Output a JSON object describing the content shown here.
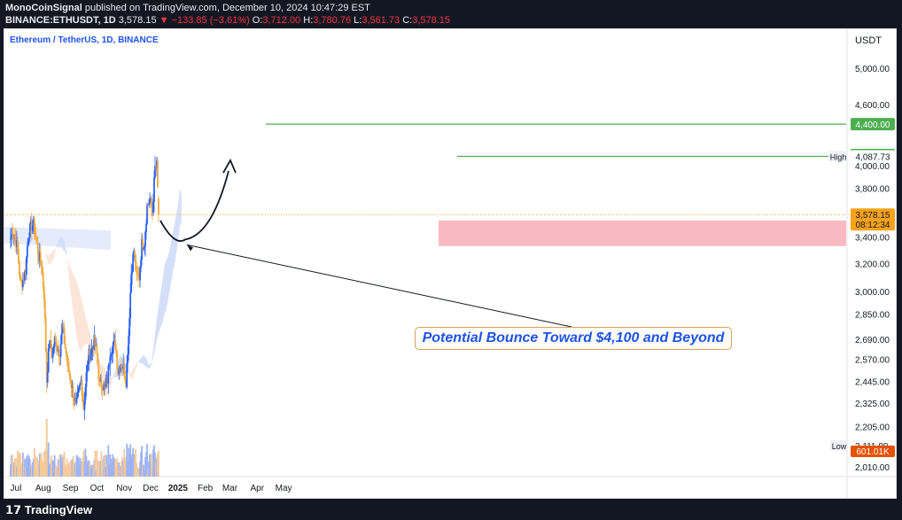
{
  "header": {
    "publisher": "MonoCoinSignal",
    "published_text": "published on TradingView.com, December 10, 2024 10:47:29 EST",
    "symbol": "BINANCE:ETHUSDT, 1D",
    "last": "3,578.15",
    "change": "−133.85 (−3.61%)",
    "open_label": "O:",
    "open": "3,712.00",
    "high_label": "H:",
    "high": "3,780.76",
    "low_label": "L:",
    "low": "3,561.73",
    "close_label": "C:",
    "close": "3,578.15"
  },
  "chart_title": "Ethereum / TetherUS, 1D, BINANCE",
  "currency": "USDT",
  "annotation": "Potential Bounce Toward $4,100 and Beyond",
  "footer_brand": "TradingView",
  "colors": {
    "up": "#2962ff",
    "down": "#f0a93a",
    "target_line": "#4caf50",
    "support_zone": "#f8a8b0",
    "cloud_bull": "#c5d3f6",
    "cloud_bear": "#fbdccb",
    "price_tag": "#f7a21b",
    "annotation_text": "#1e53e5"
  },
  "chart_data": {
    "type": "candlestick",
    "timeframe": "1D",
    "y_axis": {
      "scale": "log",
      "ticks": [
        5000,
        4600,
        4000,
        3800,
        3400,
        3200,
        3000,
        2850,
        2690,
        2570,
        2445,
        2325,
        2205,
        2111,
        2010
      ],
      "tick_labels": [
        "5,000.00",
        "4,600.00",
        "4,000.00",
        "3,800.00",
        "3,400.00",
        "3,200.00",
        "3,000.00",
        "2,850.00",
        "2,690.00",
        "2,570.00",
        "2,445.00",
        "2,325.00",
        "2,205.00",
        "2,111.00",
        "2,010.00"
      ],
      "range": [
        2000,
        5500
      ]
    },
    "x_axis": {
      "labels": [
        "Jul",
        "Aug",
        "Sep",
        "Oct",
        "Nov",
        "Dec",
        "2025",
        "Feb",
        "Mar",
        "Apr",
        "May"
      ]
    },
    "levels": [
      {
        "label": "4,400.00",
        "value": 4400,
        "kind": "target"
      },
      {
        "label": "4,100.00",
        "value": 4100,
        "kind": "target"
      },
      {
        "label": "4,087.73",
        "value": 4087.73,
        "kind": "high",
        "tag": "High"
      },
      {
        "label": "3,578.15",
        "value": 3578.15,
        "kind": "last",
        "countdown": "08:12:34"
      },
      {
        "label": "601.01K",
        "kind": "volume"
      },
      {
        "label": "2,111.00",
        "value": 2111,
        "kind": "low",
        "tag": "Low"
      }
    ],
    "support_zone": {
      "top": 3530,
      "bottom": 3330
    },
    "projection": {
      "from": 3530,
      "low": 3380,
      "to": 4050
    },
    "close_path": [
      {
        "date": "2024-06-24",
        "close": 3350
      },
      {
        "date": "2024-06-27",
        "close": 3460
      },
      {
        "date": "2024-06-30",
        "close": 3400
      },
      {
        "date": "2024-07-03",
        "close": 3300
      },
      {
        "date": "2024-07-06",
        "close": 3050
      },
      {
        "date": "2024-07-09",
        "close": 3080
      },
      {
        "date": "2024-07-12",
        "close": 3150
      },
      {
        "date": "2024-07-15",
        "close": 3420
      },
      {
        "date": "2024-07-18",
        "close": 3480
      },
      {
        "date": "2024-07-21",
        "close": 3500
      },
      {
        "date": "2024-07-24",
        "close": 3380
      },
      {
        "date": "2024-07-27",
        "close": 3250
      },
      {
        "date": "2024-07-30",
        "close": 3200
      },
      {
        "date": "2024-08-02",
        "close": 2980
      },
      {
        "date": "2024-08-05",
        "close": 2450
      },
      {
        "date": "2024-08-08",
        "close": 2680
      },
      {
        "date": "2024-08-11",
        "close": 2600
      },
      {
        "date": "2024-08-14",
        "close": 2680
      },
      {
        "date": "2024-08-17",
        "close": 2640
      },
      {
        "date": "2024-08-20",
        "close": 2620
      },
      {
        "date": "2024-08-23",
        "close": 2760
      },
      {
        "date": "2024-08-26",
        "close": 2640
      },
      {
        "date": "2024-08-29",
        "close": 2530
      },
      {
        "date": "2024-09-01",
        "close": 2450
      },
      {
        "date": "2024-09-04",
        "close": 2380
      },
      {
        "date": "2024-09-07",
        "close": 2300
      },
      {
        "date": "2024-09-10",
        "close": 2380
      },
      {
        "date": "2024-09-13",
        "close": 2450
      },
      {
        "date": "2024-09-16",
        "close": 2300
      },
      {
        "date": "2024-09-19",
        "close": 2480
      },
      {
        "date": "2024-09-22",
        "close": 2600
      },
      {
        "date": "2024-09-25",
        "close": 2620
      },
      {
        "date": "2024-09-28",
        "close": 2680
      },
      {
        "date": "2024-10-01",
        "close": 2600
      },
      {
        "date": "2024-10-04",
        "close": 2420
      },
      {
        "date": "2024-10-07",
        "close": 2430
      },
      {
        "date": "2024-10-10",
        "close": 2400
      },
      {
        "date": "2024-10-13",
        "close": 2450
      },
      {
        "date": "2024-10-16",
        "close": 2620
      },
      {
        "date": "2024-10-19",
        "close": 2650
      },
      {
        "date": "2024-10-22",
        "close": 2660
      },
      {
        "date": "2024-10-25",
        "close": 2500
      },
      {
        "date": "2024-10-28",
        "close": 2550
      },
      {
        "date": "2024-10-31",
        "close": 2520
      },
      {
        "date": "2024-11-03",
        "close": 2450
      },
      {
        "date": "2024-11-06",
        "close": 2720
      },
      {
        "date": "2024-11-09",
        "close": 3130
      },
      {
        "date": "2024-11-12",
        "close": 3300
      },
      {
        "date": "2024-11-15",
        "close": 3100
      },
      {
        "date": "2024-11-18",
        "close": 3100
      },
      {
        "date": "2024-11-21",
        "close": 3350
      },
      {
        "date": "2024-11-24",
        "close": 3360
      },
      {
        "date": "2024-11-27",
        "close": 3650
      },
      {
        "date": "2024-11-30",
        "close": 3700
      },
      {
        "date": "2024-12-03",
        "close": 3600
      },
      {
        "date": "2024-12-06",
        "close": 3980
      },
      {
        "date": "2024-12-08",
        "close": 4000
      },
      {
        "date": "2024-12-10",
        "close": 3578.15
      }
    ]
  }
}
